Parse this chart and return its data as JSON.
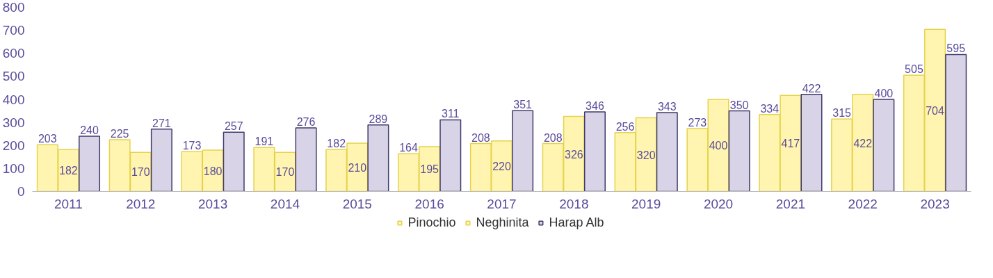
{
  "chart_data": {
    "type": "bar",
    "categories": [
      "2011",
      "2012",
      "2013",
      "2014",
      "2015",
      "2016",
      "2017",
      "2018",
      "2019",
      "2020",
      "2021",
      "2022",
      "2023"
    ],
    "series": [
      {
        "name": "Pinochio",
        "color": "#fff5b0",
        "values": [
          203,
          225,
          173,
          191,
          182,
          164,
          208,
          208,
          256,
          273,
          334,
          315,
          505
        ]
      },
      {
        "name": "Neghinita",
        "color": "#fff5b0",
        "values": [
          182,
          170,
          180,
          170,
          210,
          195,
          220,
          326,
          320,
          400,
          417,
          422,
          704
        ]
      },
      {
        "name": "Harap Alb",
        "color": "#d8d3e6",
        "values": [
          240,
          271,
          257,
          276,
          289,
          311,
          351,
          346,
          343,
          350,
          422,
          400,
          595
        ]
      }
    ],
    "ylim": [
      0,
      800
    ],
    "yticks": [
      0,
      100,
      200,
      300,
      400,
      500,
      600,
      700,
      800
    ],
    "data_labels": true,
    "grid": false,
    "legend": "bottom"
  }
}
